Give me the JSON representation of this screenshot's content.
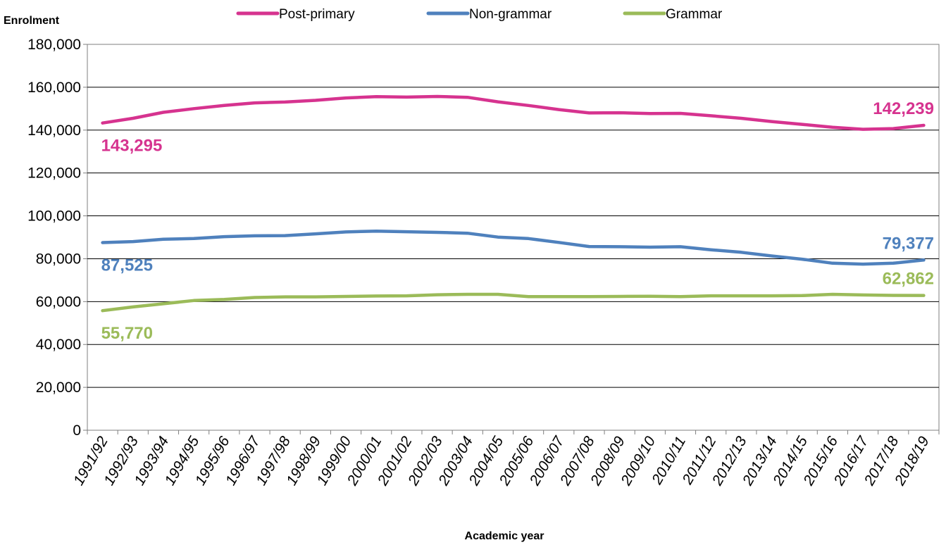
{
  "chart_data": {
    "type": "line",
    "ylabel": "Enrolment",
    "xlabel": "Academic year",
    "ylim": [
      0,
      180000
    ],
    "yticks": [
      0,
      20000,
      40000,
      60000,
      80000,
      100000,
      120000,
      140000,
      160000,
      180000
    ],
    "ytick_labels": [
      "0",
      "20,000",
      "40,000",
      "60,000",
      "80,000",
      "100,000",
      "120,000",
      "140,000",
      "160,000",
      "180,000"
    ],
    "grid": "horizontal",
    "legend_position": "top",
    "categories": [
      "1991/92",
      "1992/93",
      "1993/94",
      "1994/95",
      "1995/96",
      "1996/97",
      "1997/98",
      "1998/99",
      "1999/00",
      "2000/01",
      "2001/02",
      "2002/03",
      "2003/04",
      "2004/05",
      "2005/06",
      "2006/07",
      "2007/08",
      "2008/09",
      "2009/10",
      "2010/11",
      "2011/12",
      "2012/13",
      "2013/14",
      "2014/15",
      "2015/16",
      "2016/17",
      "2017/18",
      "2018/19"
    ],
    "series": [
      {
        "name": "Post-primary",
        "color": "#d6338f",
        "values": [
          143295,
          145500,
          148300,
          150000,
          151500,
          152700,
          153100,
          153900,
          155000,
          155600,
          155400,
          155700,
          155300,
          153200,
          151500,
          149600,
          148000,
          148100,
          147700,
          147800,
          146700,
          145500,
          144000,
          142700,
          141300,
          140400,
          140700,
          142239
        ],
        "start_label": "143,295",
        "end_label": "142,239"
      },
      {
        "name": "Non-grammar",
        "color": "#4f81bd",
        "values": [
          87525,
          88000,
          89100,
          89400,
          90300,
          90700,
          90800,
          91600,
          92500,
          92900,
          92600,
          92300,
          91900,
          90100,
          89400,
          87600,
          85700,
          85600,
          85400,
          85600,
          84200,
          83000,
          81300,
          79800,
          77900,
          77500,
          77900,
          79377
        ],
        "start_label": "87,525",
        "end_label": "79,377"
      },
      {
        "name": "Grammar",
        "color": "#9bbb59",
        "values": [
          55770,
          57500,
          59000,
          60500,
          61000,
          61900,
          62200,
          62200,
          62400,
          62600,
          62700,
          63200,
          63400,
          63400,
          62300,
          62300,
          62300,
          62400,
          62500,
          62300,
          62700,
          62700,
          62700,
          62800,
          63400,
          63100,
          62900,
          62862
        ],
        "start_label": "55,770",
        "end_label": "62,862"
      }
    ]
  }
}
